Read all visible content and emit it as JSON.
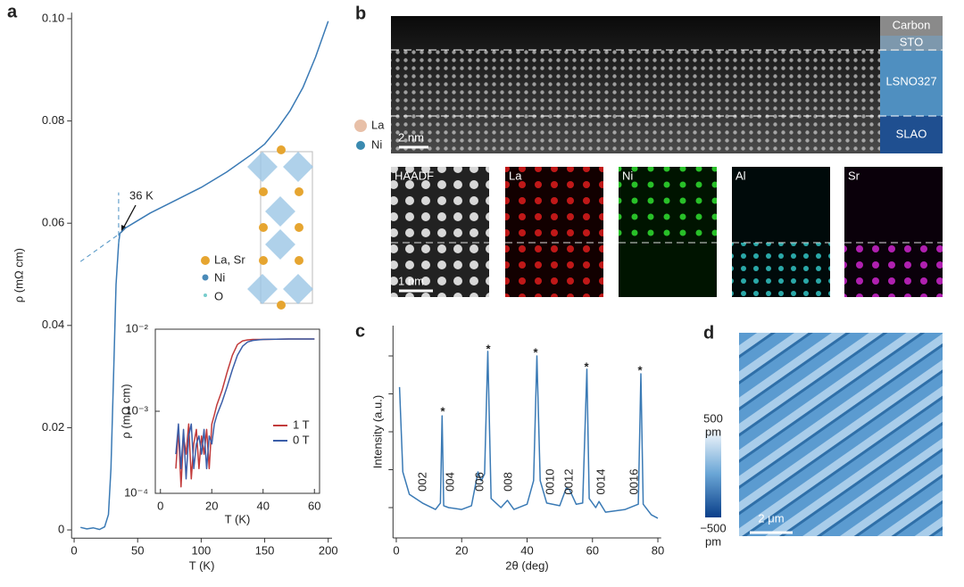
{
  "chart_data": [
    {
      "type": "line",
      "panel": "a",
      "xlabel": "T (K)",
      "ylabel": "ρ (mΩ cm)",
      "xlim": [
        -2,
        203
      ],
      "ylim": [
        -0.0016,
        0.1012
      ],
      "xticks": [
        0,
        50,
        100,
        150,
        200
      ],
      "yticks": [
        0,
        0.02,
        0.04,
        0.06,
        0.08,
        {
          "value": 0.1,
          "label": "0.10"
        }
      ],
      "series": [
        {
          "color": "#3a7ab5",
          "x": [
            5,
            10,
            15,
            20,
            24,
            27,
            29,
            31,
            33,
            35,
            36,
            40,
            50,
            60,
            80,
            100,
            120,
            140,
            150,
            160,
            170,
            180,
            190,
            200
          ],
          "values": [
            0.0005,
            0.0002,
            0.0004,
            0.0001,
            0.0006,
            0.003,
            0.012,
            0.03,
            0.048,
            0.056,
            0.058,
            0.059,
            0.0605,
            0.062,
            0.0645,
            0.067,
            0.07,
            0.0735,
            0.0755,
            0.0785,
            0.082,
            0.0865,
            0.0925,
            0.0995
          ]
        },
        {
          "color": "#5a9ac8",
          "dashed": true,
          "x": [
            5,
            36
          ],
          "values": [
            0.0525,
            0.058
          ]
        },
        {
          "color": "#5a9ac8",
          "dashed": true,
          "x": [
            35,
            35
          ],
          "values": [
            0.056,
            0.066
          ]
        }
      ],
      "annotation": "36 K",
      "structure_legend": [
        "La, Sr",
        "Ni",
        "O"
      ]
    },
    {
      "type": "line",
      "xlabel": "T (K)",
      "ylabel": "ρ (mΩ cm)",
      "log_y": true,
      "frame": "box",
      "xlim": [
        -2,
        62
      ],
      "ylim": [
        0.0001,
        0.01
      ],
      "xticks": [
        0,
        20,
        40,
        60
      ],
      "yticks": [
        {
          "value": 0.0001,
          "label": "10⁻⁴"
        },
        {
          "value": 0.001,
          "label": "10⁻³"
        },
        {
          "value": 0.01,
          "label": "10⁻²"
        }
      ],
      "legend": "lower right",
      "x": [
        6,
        7,
        8,
        9,
        10,
        11,
        12,
        13,
        14,
        15,
        16,
        17,
        18,
        19,
        20,
        21,
        22,
        24,
        26,
        28,
        30,
        32,
        34,
        36,
        38,
        40,
        50,
        60
      ],
      "series": [
        {
          "name": "1 T",
          "color": "#c23b3b",
          "values": [
            0.0002,
            0.0006,
            0.00012,
            0.0005,
            0.0003,
            0.0007,
            0.00015,
            0.0004,
            0.0006,
            0.0002,
            0.0005,
            0.0003,
            0.0006,
            0.0002,
            0.0007,
            0.0009,
            0.0012,
            0.0018,
            0.003,
            0.0048,
            0.0065,
            0.0072,
            0.0074,
            0.0075,
            0.0075,
            0.0075,
            0.0076,
            0.0076
          ]
        },
        {
          "name": "0 T",
          "color": "#3b5ea8",
          "values": [
            0.0003,
            0.0007,
            0.0002,
            0.0006,
            0.00015,
            0.0005,
            0.0007,
            0.0002,
            0.0004,
            0.0005,
            0.0003,
            0.0006,
            0.0002,
            0.0005,
            0.0004,
            0.0007,
            0.0009,
            0.0013,
            0.002,
            0.0032,
            0.0048,
            0.0062,
            0.007,
            0.0073,
            0.0074,
            0.0075,
            0.0076,
            0.0076
          ]
        }
      ]
    },
    {
      "type": "line",
      "panel": "c",
      "xlabel": "2θ (deg)",
      "ylabel": "Intensity (a.u.)",
      "xlim": [
        -1,
        81
      ],
      "ylim": [
        0.2,
        5.8
      ],
      "xticks": [
        0,
        20,
        40,
        60,
        80
      ],
      "yticks": [
        1,
        2,
        3,
        4,
        5
      ],
      "show_ytick_labels": false,
      "series": [
        {
          "color": "#3a7ab5",
          "x": [
            1,
            2,
            4,
            8,
            12,
            13.5,
            14,
            14.5,
            16,
            20,
            23,
            25,
            26,
            27,
            28,
            29,
            32,
            34,
            36,
            40,
            42,
            43,
            44,
            46,
            50,
            52,
            53,
            55,
            57,
            58.3,
            59,
            61,
            62,
            64,
            70,
            74,
            74.8,
            75.5,
            78,
            80
          ],
          "values": [
            4.18,
            1.94,
            1.35,
            1.12,
            0.95,
            1.12,
            3.42,
            1.05,
            1.0,
            0.95,
            1.05,
            1.94,
            1.71,
            1.89,
            5.12,
            1.24,
            1.0,
            1.19,
            0.95,
            1.09,
            1.71,
            5.0,
            1.71,
            1.12,
            1.05,
            1.52,
            1.47,
            1.09,
            1.12,
            4.65,
            1.24,
            1.0,
            1.16,
            0.88,
            0.95,
            1.09,
            4.53,
            1.09,
            0.81,
            0.72
          ]
        }
      ],
      "peak_labels": [
        "002",
        "004",
        "006",
        "008",
        "0010",
        "0012",
        "0014",
        "0016"
      ],
      "peak_markers": [
        "*",
        "*",
        "*",
        "*",
        "*"
      ]
    }
  ],
  "panel_b": {
    "panel": "b",
    "layers": [
      "Carbon",
      "STO",
      "LSNO327",
      "SLAO"
    ],
    "atoms": [
      "La",
      "Ni"
    ],
    "scale_top": "2 nm",
    "maps": [
      "HAADF",
      "La",
      "Ni",
      "Al",
      "Sr"
    ],
    "scale_bottom": "1 nm"
  },
  "panel_d": {
    "panel": "d",
    "colorbar_max": "500",
    "colorbar_min": "−500",
    "unit": "pm",
    "scale": "2 μm"
  }
}
